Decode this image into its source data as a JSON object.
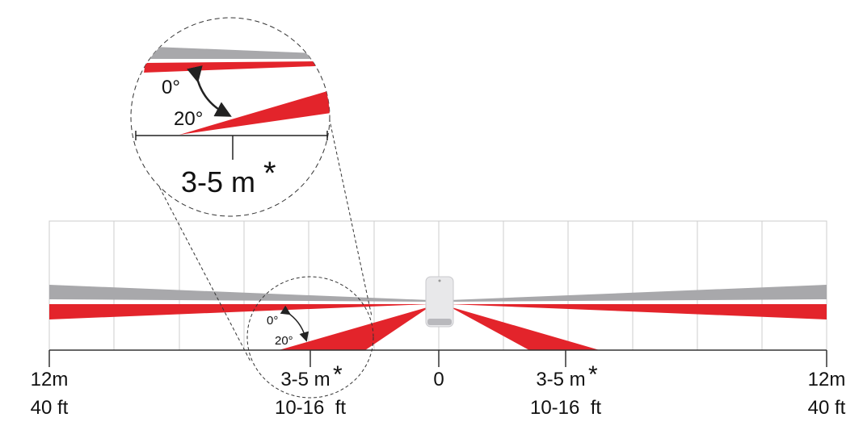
{
  "zoom": {
    "angle_top": "0°",
    "angle_bottom": "20°",
    "range": "3-5 m",
    "range_mark": "*"
  },
  "inset": {
    "angle_top": "0°",
    "angle_bottom": "20°"
  },
  "scale": {
    "left": {
      "metric": "12m",
      "imperial": "40 ft"
    },
    "near_left": {
      "metric": "3-5 m",
      "mark": "*",
      "imperial": "10-16  ft"
    },
    "center": {
      "metric": "0"
    },
    "near_right": {
      "metric": "3-5 m",
      "mark": "*",
      "imperial": "10-16  ft"
    },
    "right": {
      "metric": "12m",
      "imperial": "40 ft"
    }
  }
}
